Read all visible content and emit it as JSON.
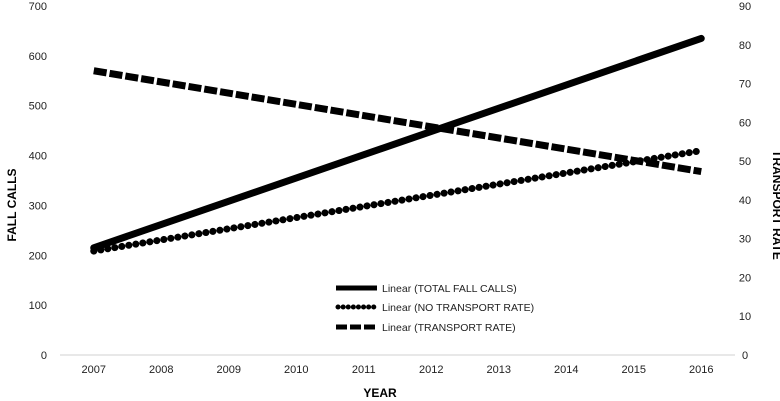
{
  "chart_data": {
    "type": "line",
    "title": "",
    "xlabel": "YEAR",
    "ylabel_left": "FALL CALLS",
    "ylabel_right": "TRANSPORT RATE",
    "categories": [
      "2007",
      "2008",
      "2009",
      "2010",
      "2011",
      "2012",
      "2013",
      "2014",
      "2015",
      "2016"
    ],
    "ylim_left": [
      0,
      700
    ],
    "yticks_left": [
      0,
      100,
      200,
      300,
      400,
      500,
      600,
      700
    ],
    "ylim_right": [
      0,
      90
    ],
    "yticks_right": [
      0,
      10,
      20,
      30,
      40,
      50,
      60,
      70,
      80,
      90
    ],
    "grid": false,
    "legend_position": "center-bottom",
    "series": [
      {
        "name": "Linear (TOTAL FALL CALLS)",
        "axis": "left",
        "style": "solid",
        "start": 215,
        "end": 635,
        "color": "#000000"
      },
      {
        "name": "Linear (NO TRANSPORT RATE)",
        "axis": "right",
        "style": "dotted",
        "start": 26.8,
        "end": 52.7,
        "color": "#000000"
      },
      {
        "name": "Linear (TRANSPORT RATE)",
        "axis": "right",
        "style": "dashed",
        "start": 73.3,
        "end": 47.3,
        "color": "#000000"
      }
    ]
  }
}
